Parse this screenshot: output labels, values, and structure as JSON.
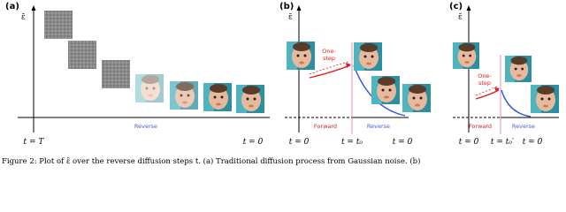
{
  "figure": {
    "panels": [
      {
        "label": "(a)",
        "y_axis": "ε̄",
        "annotations": [
          "Reverse"
        ],
        "ticks": [
          "t = T",
          "t = 0"
        ]
      },
      {
        "label": "(b)",
        "y_axis": "ε̄",
        "annotations": [
          "One-",
          "step",
          "Forward",
          "Reverse"
        ],
        "ticks": [
          "t = 0",
          "t = t₀",
          "t = 0"
        ]
      },
      {
        "label": "(c)",
        "y_axis": "ε̄",
        "annotations": [
          "One-",
          "step",
          "Forward",
          "Reverse"
        ],
        "ticks": [
          "t = 0",
          "t = t₀′",
          "t = 0"
        ]
      }
    ],
    "caption": "Figure 2:  Plot of ε̄ over the reverse diffusion steps t.  (a) Traditional diffusion process from Gaussian noise.  (b)"
  }
}
